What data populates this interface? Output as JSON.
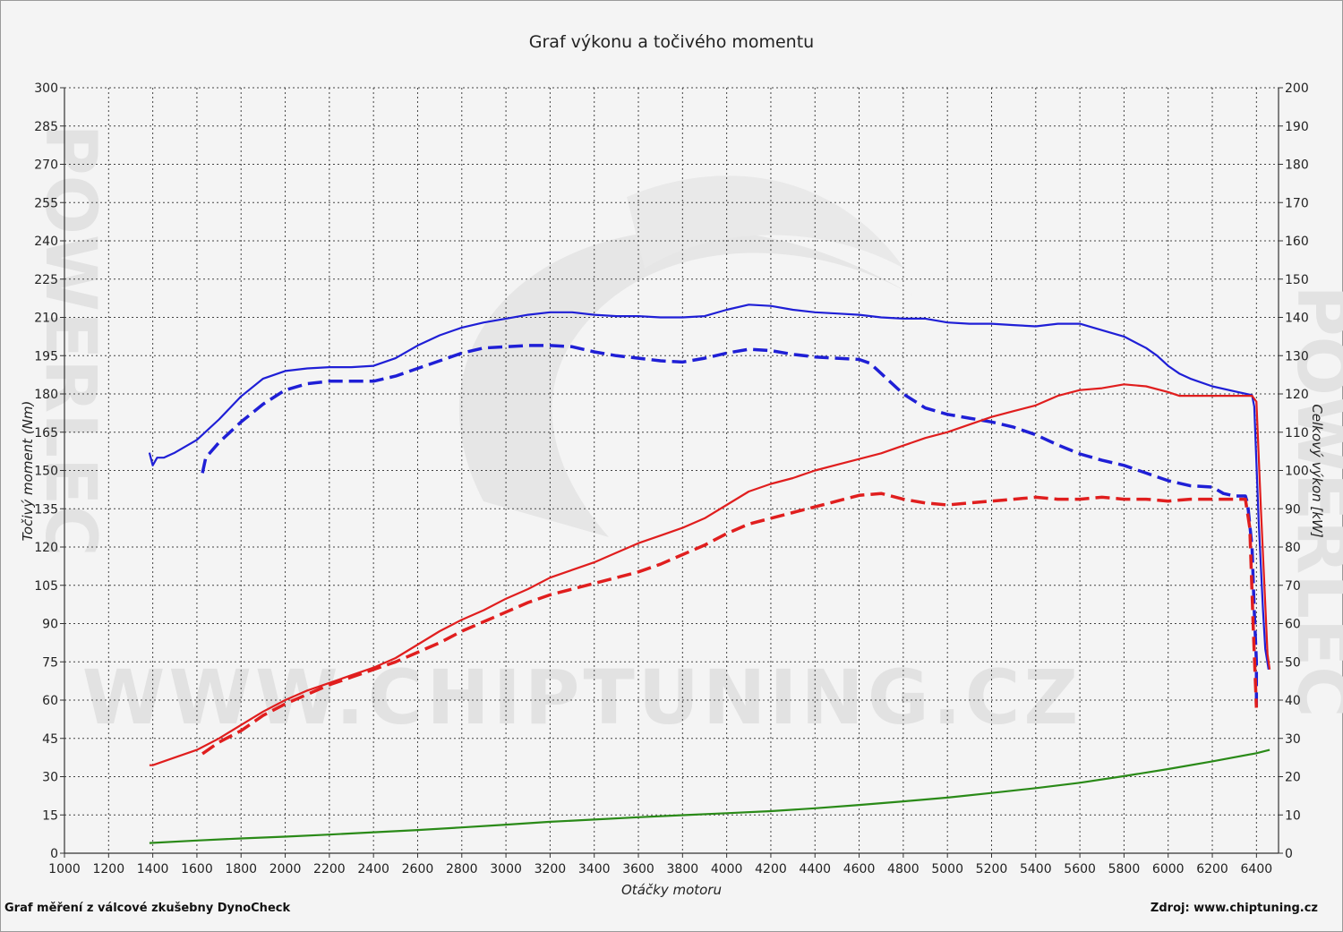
{
  "title": "Graf výkonu a točivého momentu",
  "watermark": "WWW.CHIPTUNING.CZ",
  "side_watermark": "POWERLEC",
  "footer_left": "Graf měření z válcové zkušebny DynoCheck",
  "footer_right": "Zdroj: www.chiptuning.cz",
  "chart_data": {
    "type": "line",
    "title": "Graf výkonu a točivého momentu",
    "xlabel": "Otáčky motoru",
    "ylabel_left": "Točivý moment (Nm)",
    "ylabel_right": "Celkový výkon [kW]",
    "xlim": [
      1000,
      6500
    ],
    "x_ticks": [
      1000,
      1200,
      1400,
      1600,
      1800,
      2000,
      2200,
      2400,
      2600,
      2800,
      3000,
      3200,
      3400,
      3600,
      3800,
      4000,
      4200,
      4400,
      4600,
      4800,
      5000,
      5200,
      5400,
      5600,
      5800,
      6000,
      6200,
      6400
    ],
    "ylim_left": [
      0,
      300
    ],
    "y_ticks_left": [
      0,
      15,
      30,
      45,
      60,
      75,
      90,
      105,
      120,
      135,
      150,
      165,
      180,
      195,
      210,
      225,
      240,
      255,
      270,
      285,
      300
    ],
    "ylim_right": [
      0,
      200
    ],
    "y_ticks_right": [
      0,
      10,
      20,
      30,
      40,
      50,
      60,
      70,
      80,
      90,
      100,
      110,
      120,
      130,
      140,
      150,
      160,
      170,
      180,
      190,
      200
    ],
    "grid": true,
    "series": [
      {
        "axis": "left",
        "color": "#1f1fd6",
        "style": "solid",
        "points": [
          [
            1385,
            157
          ],
          [
            1400,
            152
          ],
          [
            1420,
            155
          ],
          [
            1450,
            155
          ],
          [
            1500,
            157
          ],
          [
            1600,
            162
          ],
          [
            1700,
            170
          ],
          [
            1800,
            179
          ],
          [
            1900,
            186
          ],
          [
            2000,
            189
          ],
          [
            2100,
            190
          ],
          [
            2200,
            190.5
          ],
          [
            2300,
            190.5
          ],
          [
            2400,
            191
          ],
          [
            2500,
            194
          ],
          [
            2600,
            199
          ],
          [
            2700,
            203
          ],
          [
            2800,
            206
          ],
          [
            2900,
            208
          ],
          [
            3000,
            209.5
          ],
          [
            3100,
            211
          ],
          [
            3200,
            212
          ],
          [
            3300,
            212
          ],
          [
            3400,
            211
          ],
          [
            3500,
            210.5
          ],
          [
            3600,
            210.5
          ],
          [
            3700,
            210
          ],
          [
            3800,
            210
          ],
          [
            3900,
            210.5
          ],
          [
            4000,
            213
          ],
          [
            4100,
            215
          ],
          [
            4200,
            214.5
          ],
          [
            4300,
            213
          ],
          [
            4400,
            212
          ],
          [
            4500,
            211.5
          ],
          [
            4600,
            211
          ],
          [
            4700,
            210
          ],
          [
            4800,
            209.5
          ],
          [
            4900,
            209.5
          ],
          [
            5000,
            208
          ],
          [
            5100,
            207.5
          ],
          [
            5200,
            207.5
          ],
          [
            5300,
            207
          ],
          [
            5400,
            206.5
          ],
          [
            5500,
            207.5
          ],
          [
            5600,
            207.5
          ],
          [
            5700,
            205
          ],
          [
            5800,
            202.5
          ],
          [
            5900,
            198
          ],
          [
            5950,
            195
          ],
          [
            6000,
            191
          ],
          [
            6050,
            188
          ],
          [
            6100,
            186
          ],
          [
            6200,
            183
          ],
          [
            6300,
            181
          ],
          [
            6380,
            179.5
          ],
          [
            6390,
            175
          ],
          [
            6410,
            130
          ],
          [
            6430,
            95
          ],
          [
            6440,
            80
          ],
          [
            6455,
            72
          ]
        ]
      },
      {
        "axis": "left",
        "color": "#1f1fd6",
        "style": "dashed",
        "points": [
          [
            1625,
            149
          ],
          [
            1640,
            155
          ],
          [
            1700,
            161
          ],
          [
            1800,
            169
          ],
          [
            1900,
            176
          ],
          [
            2000,
            181.5
          ],
          [
            2100,
            184
          ],
          [
            2200,
            185
          ],
          [
            2300,
            185
          ],
          [
            2400,
            185
          ],
          [
            2500,
            187
          ],
          [
            2600,
            190
          ],
          [
            2700,
            193
          ],
          [
            2800,
            196
          ],
          [
            2900,
            198
          ],
          [
            3000,
            198.5
          ],
          [
            3100,
            199
          ],
          [
            3200,
            199
          ],
          [
            3300,
            198.5
          ],
          [
            3400,
            196.5
          ],
          [
            3500,
            195
          ],
          [
            3600,
            194
          ],
          [
            3700,
            193
          ],
          [
            3800,
            192.5
          ],
          [
            3900,
            194
          ],
          [
            4000,
            196
          ],
          [
            4100,
            197.5
          ],
          [
            4200,
            197
          ],
          [
            4300,
            195.5
          ],
          [
            4400,
            194.5
          ],
          [
            4500,
            194
          ],
          [
            4600,
            193.5
          ],
          [
            4650,
            192
          ],
          [
            4700,
            188
          ],
          [
            4800,
            180
          ],
          [
            4900,
            174.5
          ],
          [
            5000,
            172
          ],
          [
            5100,
            170.5
          ],
          [
            5200,
            169
          ],
          [
            5300,
            167
          ],
          [
            5400,
            164
          ],
          [
            5500,
            160
          ],
          [
            5600,
            156.5
          ],
          [
            5700,
            154
          ],
          [
            5800,
            152
          ],
          [
            5900,
            149
          ],
          [
            6000,
            146
          ],
          [
            6100,
            144
          ],
          [
            6200,
            143.5
          ],
          [
            6250,
            141
          ],
          [
            6300,
            140
          ],
          [
            6350,
            140
          ],
          [
            6360,
            137
          ],
          [
            6380,
            120
          ],
          [
            6390,
            95
          ],
          [
            6400,
            75
          ],
          [
            6400,
            57
          ]
        ]
      },
      {
        "axis": "right",
        "color": "#e01e1e",
        "style": "solid",
        "points": [
          [
            1385,
            23
          ],
          [
            1400,
            23
          ],
          [
            1500,
            25
          ],
          [
            1600,
            27
          ],
          [
            1700,
            30
          ],
          [
            1800,
            33.5
          ],
          [
            1900,
            37
          ],
          [
            2000,
            40
          ],
          [
            2100,
            42.5
          ],
          [
            2200,
            44.5
          ],
          [
            2300,
            46.5
          ],
          [
            2400,
            48.5
          ],
          [
            2500,
            51
          ],
          [
            2600,
            54.5
          ],
          [
            2700,
            58
          ],
          [
            2800,
            61
          ],
          [
            2900,
            63.5
          ],
          [
            3000,
            66.5
          ],
          [
            3100,
            69
          ],
          [
            3200,
            72
          ],
          [
            3300,
            74
          ],
          [
            3400,
            76
          ],
          [
            3500,
            78.5
          ],
          [
            3600,
            81
          ],
          [
            3700,
            83
          ],
          [
            3800,
            85
          ],
          [
            3900,
            87.5
          ],
          [
            4000,
            91
          ],
          [
            4100,
            94.5
          ],
          [
            4200,
            96.5
          ],
          [
            4300,
            98
          ],
          [
            4400,
            100
          ],
          [
            4500,
            101.5
          ],
          [
            4600,
            103
          ],
          [
            4700,
            104.5
          ],
          [
            4800,
            106.5
          ],
          [
            4900,
            108.5
          ],
          [
            5000,
            110
          ],
          [
            5100,
            112
          ],
          [
            5200,
            114
          ],
          [
            5300,
            115.5
          ],
          [
            5400,
            117
          ],
          [
            5500,
            119.5
          ],
          [
            5600,
            121
          ],
          [
            5700,
            121.5
          ],
          [
            5800,
            122.5
          ],
          [
            5900,
            122
          ],
          [
            6000,
            120.5
          ],
          [
            6050,
            119.5
          ],
          [
            6100,
            119.5
          ],
          [
            6200,
            119.5
          ],
          [
            6300,
            119.5
          ],
          [
            6380,
            119.5
          ],
          [
            6400,
            118
          ],
          [
            6420,
            90
          ],
          [
            6440,
            65
          ],
          [
            6450,
            52
          ],
          [
            6460,
            48
          ]
        ]
      },
      {
        "axis": "right",
        "color": "#e01e1e",
        "style": "dashed",
        "points": [
          [
            1625,
            26
          ],
          [
            1700,
            29
          ],
          [
            1800,
            32
          ],
          [
            1900,
            36
          ],
          [
            2000,
            39
          ],
          [
            2100,
            41.5
          ],
          [
            2200,
            44
          ],
          [
            2300,
            46
          ],
          [
            2400,
            48
          ],
          [
            2500,
            50
          ],
          [
            2600,
            52.5
          ],
          [
            2700,
            55
          ],
          [
            2800,
            58
          ],
          [
            2900,
            60.5
          ],
          [
            3000,
            63
          ],
          [
            3100,
            65.5
          ],
          [
            3200,
            67.5
          ],
          [
            3300,
            69
          ],
          [
            3400,
            70.5
          ],
          [
            3500,
            72
          ],
          [
            3600,
            73.5
          ],
          [
            3700,
            75.5
          ],
          [
            3800,
            78
          ],
          [
            3900,
            80.5
          ],
          [
            4000,
            83.5
          ],
          [
            4100,
            86
          ],
          [
            4200,
            87.5
          ],
          [
            4300,
            89
          ],
          [
            4400,
            90.5
          ],
          [
            4500,
            92
          ],
          [
            4600,
            93.5
          ],
          [
            4700,
            94
          ],
          [
            4800,
            92.5
          ],
          [
            4900,
            91.5
          ],
          [
            5000,
            91
          ],
          [
            5100,
            91.5
          ],
          [
            5200,
            92
          ],
          [
            5300,
            92.5
          ],
          [
            5400,
            93
          ],
          [
            5500,
            92.5
          ],
          [
            5600,
            92.5
          ],
          [
            5700,
            93
          ],
          [
            5800,
            92.5
          ],
          [
            5900,
            92.5
          ],
          [
            6000,
            92
          ],
          [
            6100,
            92.5
          ],
          [
            6200,
            92.5
          ],
          [
            6300,
            92.5
          ],
          [
            6350,
            92.5
          ],
          [
            6370,
            85
          ],
          [
            6385,
            60
          ],
          [
            6395,
            45
          ],
          [
            6400,
            38
          ]
        ]
      },
      {
        "axis": "left",
        "color": "#2a8a18",
        "style": "solid",
        "points": [
          [
            1385,
            4
          ],
          [
            1600,
            5
          ],
          [
            1800,
            5.8
          ],
          [
            2000,
            6.5
          ],
          [
            2200,
            7.3
          ],
          [
            2400,
            8.2
          ],
          [
            2600,
            9.1
          ],
          [
            2800,
            10.1
          ],
          [
            3000,
            11.2
          ],
          [
            3200,
            12.3
          ],
          [
            3400,
            13.2
          ],
          [
            3600,
            14.1
          ],
          [
            3800,
            14.9
          ],
          [
            4000,
            15.7
          ],
          [
            4200,
            16.5
          ],
          [
            4400,
            17.6
          ],
          [
            4600,
            18.9
          ],
          [
            4800,
            20.3
          ],
          [
            5000,
            21.8
          ],
          [
            5200,
            23.6
          ],
          [
            5400,
            25.5
          ],
          [
            5600,
            27.6
          ],
          [
            5800,
            30.2
          ],
          [
            6000,
            33
          ],
          [
            6200,
            36
          ],
          [
            6400,
            39.2
          ],
          [
            6460,
            40.5
          ]
        ]
      }
    ]
  }
}
